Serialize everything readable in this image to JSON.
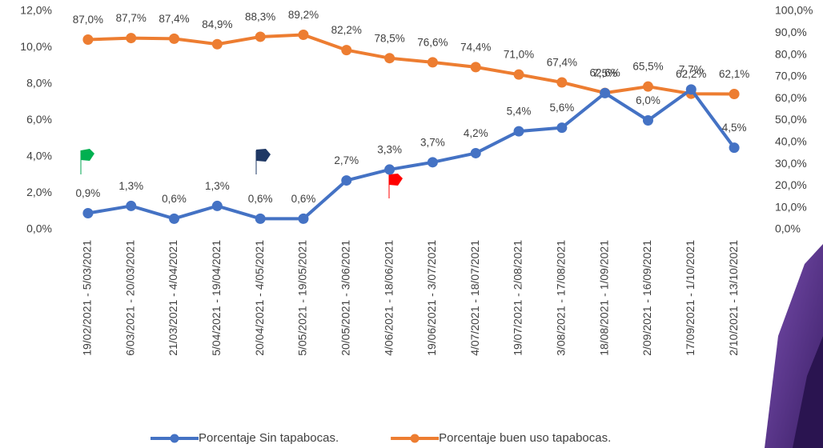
{
  "chart_data": {
    "type": "line",
    "categories": [
      "19/02/2021 - 5/03/2021",
      "6/03/2021 - 20/03/2021",
      "21/03/2021 - 4/04/2021",
      "5/04/2021 - 19/04/2021",
      "20/04/2021 - 4/05/2021",
      "5/05/2021 - 19/05/2021",
      "20/05/2021 - 3/06/2021",
      "4/06/2021 - 18/06/2021",
      "19/06/2021 - 3/07/2021",
      "4/07/2021 - 18/07/2021",
      "19/07/2021 - 2/08/2021",
      "3/08/2021 - 17/08/2021",
      "18/08/2021 - 1/09/2021",
      "2/09/2021 - 16/09/2021",
      "17/09/2021 - 1/10/2021",
      "2/10/2021 - 13/10/2021"
    ],
    "series": [
      {
        "name": "Porcentaje Sin tapabocas.",
        "color": "#4472c4",
        "axis": "y",
        "values": [
          0.9,
          1.3,
          0.6,
          1.3,
          0.6,
          0.6,
          2.7,
          3.3,
          3.7,
          4.2,
          5.4,
          5.6,
          7.5,
          6.0,
          7.7,
          4.5
        ],
        "value_labels": [
          "0,9%",
          "1,3%",
          "0,6%",
          "1,3%",
          "0,6%",
          "0,6%",
          "2,7%",
          "3,3%",
          "3,7%",
          "4,2%",
          "5,4%",
          "5,6%",
          "7,5%",
          "6,0%",
          "7,7%",
          "4,5%"
        ]
      },
      {
        "name": "Porcentaje buen uso tapabocas.",
        "color": "#ed7d31",
        "axis": "y2",
        "values": [
          87.0,
          87.7,
          87.4,
          84.9,
          88.3,
          89.2,
          82.2,
          78.5,
          76.6,
          74.4,
          71.0,
          67.4,
          62.6,
          65.5,
          62.2,
          62.1
        ],
        "value_labels": [
          "87,0%",
          "87,7%",
          "87,4%",
          "84,9%",
          "88,3%",
          "89,2%",
          "82,2%",
          "78,5%",
          "76,6%",
          "74,4%",
          "71,0%",
          "67,4%",
          "62,6%",
          "65,5%",
          "62,2%",
          "62,1%"
        ]
      }
    ],
    "ylim": [
      0,
      12
    ],
    "yticks": [
      {
        "value": 0,
        "label": "0,0%"
      },
      {
        "value": 2,
        "label": "2,0%"
      },
      {
        "value": 4,
        "label": "4,0%"
      },
      {
        "value": 6,
        "label": "6,0%"
      },
      {
        "value": 8,
        "label": "8,0%"
      },
      {
        "value": 10,
        "label": "10,0%"
      },
      {
        "value": 12,
        "label": "12,0%"
      }
    ],
    "y2lim": [
      0,
      100
    ],
    "y2ticks": [
      {
        "value": 0,
        "label": "0,0%"
      },
      {
        "value": 10,
        "label": "10,0%"
      },
      {
        "value": 20,
        "label": "20,0%"
      },
      {
        "value": 30,
        "label": "30,0%"
      },
      {
        "value": 40,
        "label": "40,0%"
      },
      {
        "value": 50,
        "label": "50,0%"
      },
      {
        "value": 60,
        "label": "60,0%"
      },
      {
        "value": 70,
        "label": "70,0%"
      },
      {
        "value": 80,
        "label": "80,0%"
      },
      {
        "value": 90,
        "label": "90,0%"
      },
      {
        "value": 100,
        "label": "100,0%"
      }
    ],
    "grid": false,
    "legend": "bottom"
  }
}
